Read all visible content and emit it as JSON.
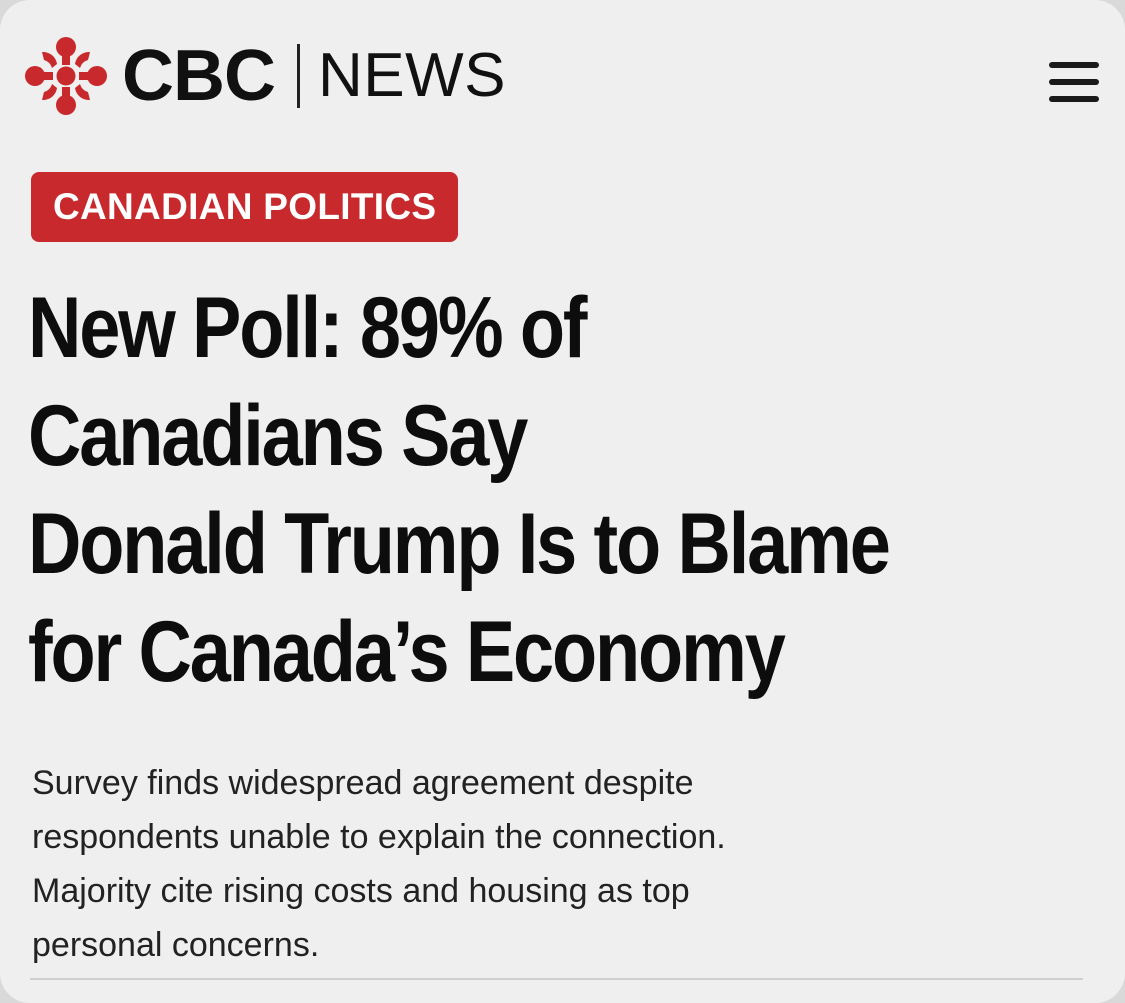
{
  "brand": {
    "logo_icon": "cbc-gem-logo-icon",
    "name": "CBC",
    "section": "NEWS",
    "accent_color": "#c8292d"
  },
  "menu": {
    "icon": "hamburger-menu-icon"
  },
  "article": {
    "category": "CANADIAN POLITICS",
    "headline_lines": [
      "New Poll: 89% of",
      "Canadians Say",
      "Donald Trump Is to Blame",
      "for Canada’s Economy"
    ],
    "summary_lines": [
      "Survey finds widespread agreement despite",
      "respondents unable to explain the connection.",
      "Majority cite rising costs and housing as top",
      "personal concerns."
    ]
  }
}
